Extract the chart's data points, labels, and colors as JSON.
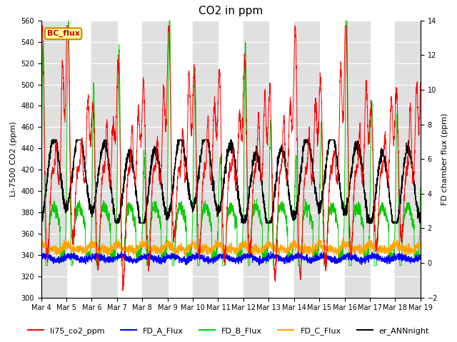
{
  "title": "CO2 in ppm",
  "ylabel_left": "Li-7500 CO2 (ppm)",
  "ylabel_right": "FD chamber flux (ppm)",
  "ylim_left": [
    300,
    560
  ],
  "ylim_right": [
    -2,
    14
  ],
  "yticks_left": [
    300,
    320,
    340,
    360,
    380,
    400,
    420,
    440,
    460,
    480,
    500,
    520,
    540,
    560
  ],
  "yticks_right": [
    -2,
    0,
    2,
    4,
    6,
    8,
    10,
    12,
    14
  ],
  "xtick_labels": [
    "Mar 4",
    "Mar 5",
    "Mar 6",
    "Mar 7",
    "Mar 8",
    "Mar 9",
    "Mar 10",
    "Mar 11",
    "Mar 12",
    "Mar 13",
    "Mar 14",
    "Mar 15",
    "Mar 16",
    "Mar 17",
    "Mar 18",
    "Mar 19"
  ],
  "n_days": 16,
  "background_color": "#ffffff",
  "band_color": "#e0e0e0",
  "series_colors": {
    "li75_co2_ppm": "#ff0000",
    "FD_A_Flux": "#0000ff",
    "FD_B_Flux": "#00cc00",
    "FD_C_Flux": "#ffa500",
    "er_ANNnight": "#000000"
  },
  "legend_items": [
    "li75_co2_ppm",
    "FD_A_Flux",
    "FD_B_Flux",
    "FD_C_Flux",
    "er_ANNnight"
  ],
  "legend_colors": [
    "#ff0000",
    "#0000ff",
    "#00cc00",
    "#ffa500",
    "#000000"
  ],
  "bc_flux_box_color": "#ffff99",
  "bc_flux_border_color": "#cc8800",
  "title_fontsize": 11,
  "axis_label_fontsize": 8,
  "tick_fontsize": 7,
  "legend_fontsize": 8
}
